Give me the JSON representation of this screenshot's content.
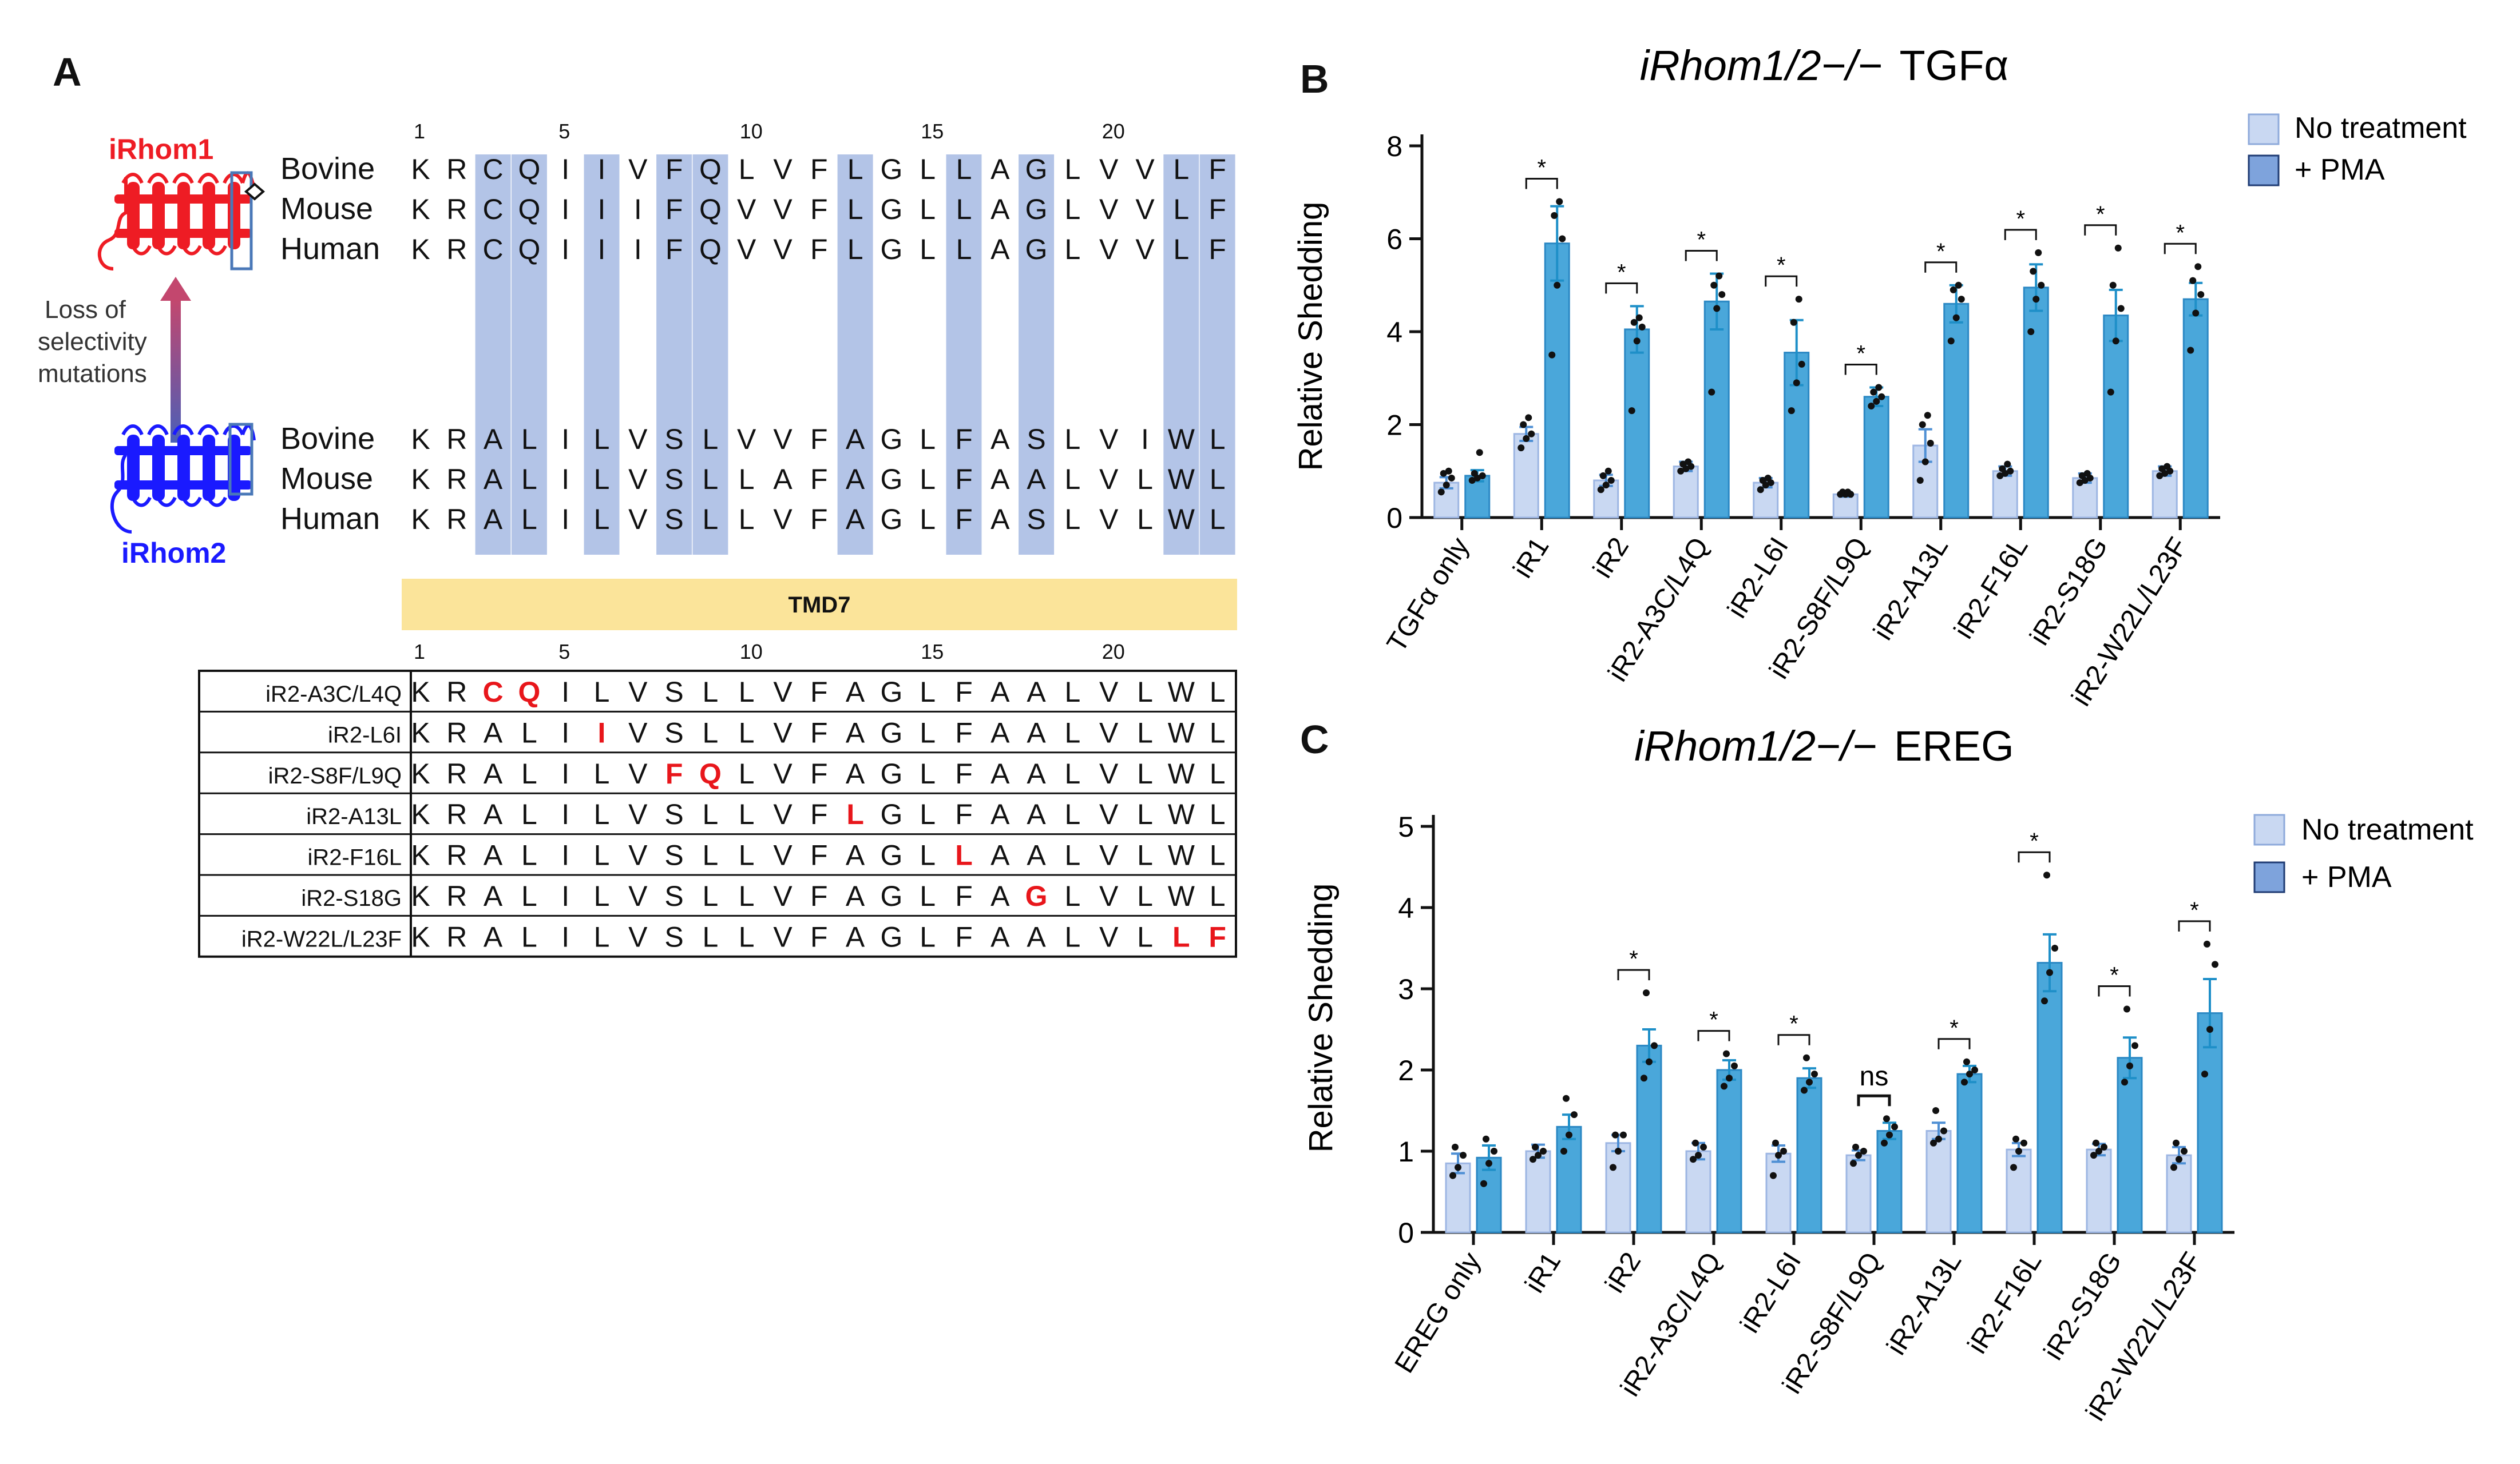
{
  "panels": {
    "a": "A",
    "b": "B",
    "c": "C"
  },
  "colors": {
    "no_treatment": "#c9d8f2",
    "pma": "#4aa7da",
    "highlight": "#b3c4e7",
    "tmd_bar": "#fbe49a",
    "mutation": "#e8161b",
    "irhom1": "#ee1c24",
    "irhom2": "#1a1aff"
  },
  "alignment": {
    "irhom1_label": "iRhom1",
    "irhom2_label": "iRhom2",
    "arrow_label": [
      "Loss of",
      "selectivity",
      "mutations"
    ],
    "position_numbers": [
      "1",
      "5",
      "10",
      "15",
      "20"
    ],
    "highlight_columns": [
      3,
      4,
      6,
      8,
      9,
      13,
      16,
      18,
      22,
      23
    ],
    "irhom1": [
      {
        "species": "Bovine",
        "seq": "KRCQIIVFQLVFLGLLAGLVVLF"
      },
      {
        "species": "Mouse",
        "seq": "KRCQIIIFQVVFLGLLAGLVVLF"
      },
      {
        "species": "Human",
        "seq": "KRCQIIIFQVVFLGLLAGLVVLF"
      }
    ],
    "irhom2": [
      {
        "species": "Bovine",
        "seq": "KRALILVSLVVFAGLFASLVIWL"
      },
      {
        "species": "Mouse",
        "seq": "KRALILVSLLAFAGLFAALVLWL"
      },
      {
        "species": "Human",
        "seq": "KRALILVSLLVFAGLFASLVLWL"
      }
    ],
    "tmd_label": "TMD7"
  },
  "mutants_table": {
    "rows": [
      {
        "name": "iR2-A3C/L4Q",
        "seq": "KRCQILVSLLVFAGLFAALVLWL",
        "mutated": [
          3,
          4
        ]
      },
      {
        "name": "iR2-L6I",
        "seq": "KRALIIVSLLVFAGLFAALVLWL",
        "mutated": [
          6
        ]
      },
      {
        "name": "iR2-S8F/L9Q",
        "seq": "KRALILVFQLVFAGLFAALVLWL",
        "mutated": [
          8,
          9
        ]
      },
      {
        "name": "iR2-A13L",
        "seq": "KRALILVSLLVFLGLFAALVLWL",
        "mutated": [
          13
        ]
      },
      {
        "name": "iR2-F16L",
        "seq": "KRALILVSLLVFAGLLAALVLWL",
        "mutated": [
          16
        ]
      },
      {
        "name": "iR2-S18G",
        "seq": "KRALILVSLLVFAGLFAGLVLWL",
        "mutated": [
          18
        ]
      },
      {
        "name": "iR2-W22L/L23F",
        "seq": "KRALILVSLLVFAGLFAALVLLF",
        "mutated": [
          22,
          23
        ]
      }
    ]
  },
  "chart_data": [
    {
      "panel": "B",
      "type": "bar",
      "title_italic": "iRhom1/2−/−",
      "title_rest": "TGFα",
      "ylabel": "Relative Shedding",
      "xlabel": "",
      "ylim": [
        0,
        8
      ],
      "yticks": [
        0,
        2,
        4,
        6,
        8
      ],
      "legend": [
        "No treatment",
        "+ PMA"
      ],
      "legend_position": "top-right",
      "categories": [
        "TGFα only",
        "iR1",
        "iR2",
        "iR2-A3C/L4Q",
        "iR2-L6I",
        "iR2-S8F/L9Q",
        "iR2-A13L",
        "iR2-F16L",
        "iR2-S18G",
        "iR2-W22L/L23F"
      ],
      "series": [
        {
          "name": "No treatment",
          "values": [
            0.75,
            1.8,
            0.8,
            1.1,
            0.75,
            0.5,
            1.55,
            1.0,
            0.85,
            1.0
          ],
          "errors": [
            0.12,
            0.15,
            0.12,
            0.1,
            0.1,
            0.05,
            0.35,
            0.1,
            0.1,
            0.1
          ]
        },
        {
          "name": "+ PMA",
          "values": [
            0.9,
            5.9,
            4.05,
            4.65,
            3.55,
            2.6,
            4.6,
            4.95,
            4.35,
            4.7
          ],
          "errors": [
            0.12,
            0.8,
            0.5,
            0.6,
            0.7,
            0.2,
            0.4,
            0.5,
            0.55,
            0.35
          ]
        }
      ],
      "points": {
        "No treatment": [
          [
            0.55,
            0.7,
            0.85,
            0.95,
            1.0
          ],
          [
            1.5,
            1.7,
            1.8,
            2.0,
            2.15
          ],
          [
            0.6,
            0.7,
            0.8,
            0.9,
            1.0
          ],
          [
            1.0,
            1.05,
            1.1,
            1.15,
            1.2
          ],
          [
            0.6,
            0.7,
            0.75,
            0.8,
            0.85
          ],
          [
            0.5,
            0.5,
            0.5,
            0.55,
            0.55
          ],
          [
            0.8,
            1.2,
            1.6,
            2.0,
            2.2
          ],
          [
            0.9,
            0.95,
            1.0,
            1.05,
            1.15
          ],
          [
            0.75,
            0.8,
            0.85,
            0.9,
            0.95
          ],
          [
            0.9,
            0.95,
            1.0,
            1.05,
            1.1
          ]
        ],
        "+ PMA": [
          [
            0.8,
            0.85,
            0.9,
            0.95,
            1.4
          ],
          [
            3.5,
            5.0,
            6.0,
            6.5,
            6.8
          ],
          [
            2.3,
            3.8,
            4.1,
            4.2,
            4.3
          ],
          [
            2.7,
            4.5,
            4.8,
            5.0,
            5.2
          ],
          [
            2.3,
            2.9,
            3.3,
            4.2,
            4.7
          ],
          [
            2.4,
            2.5,
            2.6,
            2.7,
            2.8
          ],
          [
            3.8,
            4.3,
            4.7,
            4.9,
            5.0
          ],
          [
            4.0,
            4.7,
            5.0,
            5.3,
            5.7
          ],
          [
            2.7,
            3.8,
            4.5,
            5.0,
            5.8
          ],
          [
            3.6,
            4.4,
            4.8,
            5.1,
            5.4
          ]
        ]
      },
      "significance": [
        "",
        "*",
        "*",
        "*",
        "*",
        "*",
        "*",
        "*",
        "*",
        "*"
      ]
    },
    {
      "panel": "C",
      "type": "bar",
      "title_italic": "iRhom1/2−/−",
      "title_rest": "EREG",
      "ylabel": "Relative Shedding",
      "xlabel": "",
      "ylim": [
        0,
        5
      ],
      "yticks": [
        0,
        1,
        2,
        3,
        4,
        5
      ],
      "legend": [
        "No treatment",
        "+ PMA"
      ],
      "legend_position": "top-right",
      "categories": [
        "EREG only",
        "iR1",
        "iR2",
        "iR2-A3C/L4Q",
        "iR2-L6I",
        "iR2-S8F/L9Q",
        "iR2-A13L",
        "iR2-F16L",
        "iR2-S18G",
        "iR2-W22L/L23F"
      ],
      "series": [
        {
          "name": "No treatment",
          "values": [
            0.85,
            1.0,
            1.1,
            1.0,
            0.97,
            0.95,
            1.25,
            1.02,
            1.02,
            0.95
          ],
          "errors": [
            0.12,
            0.08,
            0.1,
            0.1,
            0.1,
            0.06,
            0.1,
            0.08,
            0.07,
            0.1
          ]
        },
        {
          "name": "+ PMA",
          "values": [
            0.92,
            1.3,
            2.3,
            2.0,
            1.9,
            1.25,
            1.95,
            3.32,
            2.15,
            2.7
          ],
          "errors": [
            0.15,
            0.15,
            0.2,
            0.12,
            0.12,
            0.1,
            0.1,
            0.35,
            0.25,
            0.42
          ]
        }
      ],
      "points": {
        "No treatment": [
          [
            0.7,
            0.8,
            0.95,
            1.05
          ],
          [
            0.9,
            0.95,
            1.0,
            1.05
          ],
          [
            0.8,
            1.0,
            1.2,
            1.2
          ],
          [
            0.9,
            0.95,
            1.05,
            1.1
          ],
          [
            0.7,
            0.95,
            1.0,
            1.1
          ],
          [
            0.85,
            0.95,
            1.0,
            1.05
          ],
          [
            1.1,
            1.15,
            1.25,
            1.5
          ],
          [
            0.8,
            1.0,
            1.1,
            1.15
          ],
          [
            0.95,
            1.0,
            1.05,
            1.1
          ],
          [
            0.8,
            0.9,
            1.0,
            1.1
          ]
        ],
        "+ PMA": [
          [
            0.6,
            0.85,
            1.0,
            1.15
          ],
          [
            1.0,
            1.2,
            1.45,
            1.65
          ],
          [
            1.9,
            2.1,
            2.3,
            2.95
          ],
          [
            1.8,
            1.9,
            2.05,
            2.2
          ],
          [
            1.75,
            1.85,
            1.95,
            2.15
          ],
          [
            1.1,
            1.2,
            1.3,
            1.4
          ],
          [
            1.85,
            1.95,
            2.0,
            2.1
          ],
          [
            2.85,
            3.2,
            3.5,
            4.4
          ],
          [
            1.85,
            2.05,
            2.3,
            2.75
          ],
          [
            1.95,
            2.5,
            3.3,
            3.55
          ]
        ]
      },
      "significance": [
        "",
        "",
        "*",
        "*",
        "*",
        "ns",
        "*",
        "*",
        "*",
        "*"
      ]
    }
  ]
}
